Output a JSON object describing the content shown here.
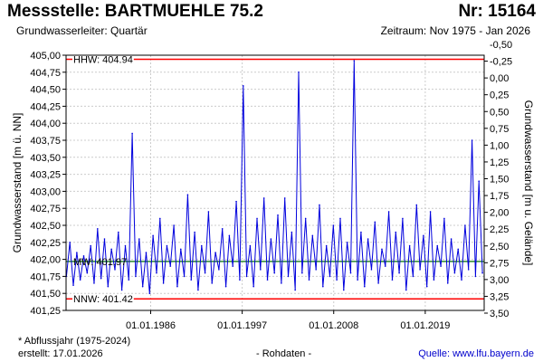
{
  "header": {
    "title": "Messstelle: BARTMUEHLE 75.2",
    "number": "Nr: 15164",
    "aquifer": "Grundwasserleiter: Quartär",
    "period": "Zeitraum: Nov 1975 - Jan 2026"
  },
  "footer": {
    "note": "* Abflussjahr (1975-2024)",
    "created": "erstellt:  17.01.2026",
    "data_kind": "- Rohdaten -",
    "source_label": "Quelle: ",
    "source_link": "www.lfu.bayern.de"
  },
  "colors": {
    "series": "#0000dd",
    "hhw": "#ff0000",
    "nnw": "#ff0000",
    "mw": "#2e8b2e",
    "grid": "#cccccc",
    "frame": "#000000"
  },
  "chart_data": {
    "type": "line",
    "ylabel": "Grundwasserstand [m ü. NN]",
    "ylabel_right": "Grundwasserstand [m u. Gelände]",
    "ylim": [
      401.25,
      405.0
    ],
    "xlim": [
      "1975-11-01",
      "2026-01-31"
    ],
    "y_ticks": [
      "401,25",
      "401,50",
      "401,75",
      "402,00",
      "402,25",
      "402,50",
      "402,75",
      "403,00",
      "403,25",
      "403,50",
      "403,75",
      "404,00",
      "404,25",
      "404,50",
      "404,75",
      "405,00"
    ],
    "y2_ticks": [
      "3,50",
      "3,25",
      "3,00",
      "2,75",
      "2,50",
      "2,25",
      "2,00",
      "1,75",
      "1,50",
      "1,25",
      "1,00",
      "0,75",
      "0,50",
      "0,25",
      "0,00",
      "-0,25",
      "-0,50"
    ],
    "x_ticks": [
      {
        "date": "1986-01-01",
        "label": "01.01.1986"
      },
      {
        "date": "1997-01-01",
        "label": "01.01.1997"
      },
      {
        "date": "2008-01-01",
        "label": "01.01.2008"
      },
      {
        "date": "2019-01-01",
        "label": "01.01.2019"
      }
    ],
    "grid": true,
    "reference_lines": [
      {
        "name": "HHW",
        "label": "HHW: 404.94",
        "value": 404.94
      },
      {
        "name": "MW",
        "label": "MW: 401.97",
        "value": 401.97
      },
      {
        "name": "NNW",
        "label": "NNW: 401.42",
        "value": 401.42
      }
    ],
    "series": [
      {
        "x": [
          "1975-11",
          "1976-04",
          "1976-09",
          "1977-02",
          "1977-07",
          "1977-12",
          "1978-05",
          "1978-10",
          "1979-03",
          "1979-08",
          "1980-01",
          "1980-06",
          "1980-11",
          "1981-04",
          "1981-09",
          "1982-02",
          "1982-07",
          "1982-12",
          "1983-05",
          "1983-10",
          "1984-03",
          "1984-08",
          "1985-01",
          "1985-06",
          "1985-11",
          "1986-04",
          "1986-09",
          "1987-02",
          "1987-07",
          "1987-12",
          "1988-05",
          "1988-10",
          "1989-03",
          "1989-08",
          "1990-01",
          "1990-06",
          "1990-11",
          "1991-04",
          "1991-09",
          "1992-02",
          "1992-07",
          "1992-12",
          "1993-05",
          "1993-10",
          "1994-03",
          "1994-08",
          "1995-01",
          "1995-06",
          "1995-11",
          "1996-04",
          "1996-09",
          "1997-02",
          "1997-07",
          "1997-12",
          "1998-05",
          "1998-10",
          "1999-03",
          "1999-08",
          "2000-01",
          "2000-06",
          "2000-11",
          "2001-04",
          "2001-09",
          "2002-02",
          "2002-07",
          "2002-12",
          "2003-05",
          "2003-10",
          "2004-03",
          "2004-08",
          "2005-01",
          "2005-06",
          "2005-11",
          "2006-04",
          "2006-09",
          "2007-02",
          "2007-07",
          "2007-12",
          "2008-05",
          "2008-10",
          "2009-03",
          "2009-08",
          "2010-01",
          "2010-06",
          "2010-11",
          "2011-04",
          "2011-09",
          "2012-02",
          "2012-07",
          "2012-12",
          "2013-05",
          "2013-10",
          "2014-03",
          "2014-08",
          "2015-01",
          "2015-06",
          "2015-11",
          "2016-04",
          "2016-09",
          "2017-02",
          "2017-07",
          "2017-12",
          "2018-05",
          "2018-10",
          "2019-03",
          "2019-08",
          "2020-01",
          "2020-06",
          "2020-11",
          "2021-04",
          "2021-09",
          "2022-02",
          "2022-07",
          "2022-12",
          "2023-05",
          "2023-10",
          "2024-03",
          "2024-08",
          "2025-01",
          "2025-06",
          "2025-11"
        ],
        "y": [
          401.75,
          402.25,
          401.62,
          402.1,
          401.7,
          402.05,
          401.8,
          402.2,
          401.65,
          402.45,
          401.72,
          402.3,
          401.6,
          402.15,
          401.85,
          402.4,
          401.55,
          402.2,
          401.7,
          403.85,
          401.75,
          402.3,
          401.6,
          402.1,
          401.5,
          402.35,
          401.8,
          402.6,
          401.65,
          402.2,
          401.9,
          402.5,
          401.6,
          402.15,
          401.75,
          402.95,
          401.7,
          402.4,
          401.55,
          402.2,
          401.8,
          402.7,
          401.65,
          402.1,
          401.85,
          402.45,
          401.6,
          402.35,
          401.9,
          402.85,
          401.7,
          404.55,
          401.75,
          402.2,
          401.6,
          402.6,
          401.85,
          402.9,
          401.7,
          402.3,
          401.8,
          402.65,
          401.65,
          402.9,
          401.75,
          402.4,
          401.55,
          404.75,
          401.8,
          402.6,
          401.7,
          402.35,
          401.85,
          402.8,
          401.6,
          402.2,
          401.75,
          402.5,
          401.7,
          402.6,
          401.55,
          402.25,
          401.8,
          404.92,
          401.7,
          402.4,
          401.6,
          402.3,
          401.85,
          402.55,
          401.65,
          402.15,
          401.9,
          402.7,
          401.7,
          402.4,
          401.8,
          402.6,
          401.55,
          402.2,
          401.75,
          402.8,
          401.85,
          402.35,
          401.6,
          402.7,
          401.7,
          402.2,
          401.9,
          402.6,
          401.65,
          402.3,
          401.8,
          402.15,
          401.7,
          402.5,
          401.85,
          403.75,
          401.75,
          403.15,
          401.8
        ]
      }
    ]
  }
}
